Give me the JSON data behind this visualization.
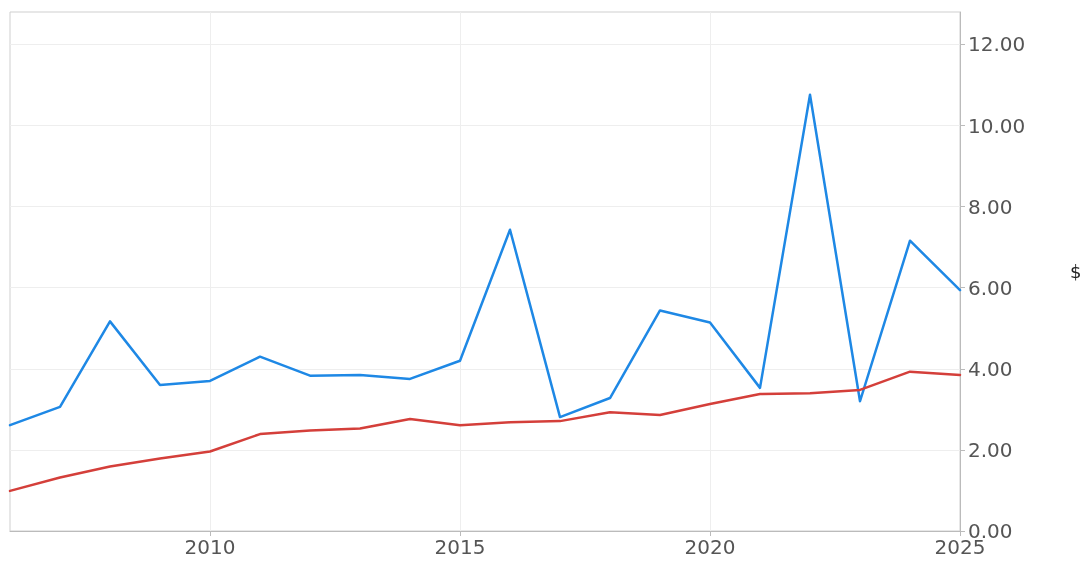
{
  "chart_data": {
    "type": "line",
    "ylabel": "$",
    "x": [
      2006,
      2007,
      2008,
      2009,
      2010,
      2011,
      2012,
      2013,
      2014,
      2015,
      2016,
      2017,
      2018,
      2019,
      2020,
      2021,
      2022,
      2023,
      2024,
      2025
    ],
    "series": [
      {
        "color": "#1e88e5",
        "values": [
          2.61,
          3.06,
          5.17,
          3.6,
          3.7,
          4.3,
          3.83,
          3.85,
          3.75,
          4.2,
          7.43,
          2.81,
          3.28,
          5.44,
          5.14,
          3.53,
          10.76,
          3.2,
          7.16,
          5.94
        ]
      },
      {
        "color": "#d43f3a",
        "values": [
          0.99,
          1.32,
          1.59,
          1.79,
          1.96,
          2.39,
          2.48,
          2.53,
          2.76,
          2.61,
          2.68,
          2.71,
          2.93,
          2.86,
          3.13,
          3.38,
          3.4,
          3.48,
          3.93,
          3.85
        ]
      }
    ],
    "xlim": [
      2006,
      2025
    ],
    "xticks": [
      2010,
      2015,
      2020,
      2025
    ],
    "ylim": [
      0,
      12.8
    ],
    "yticks": [
      {
        "value": 0,
        "label": "0.00"
      },
      {
        "value": 2,
        "label": "2.00"
      },
      {
        "value": 4,
        "label": "4.00"
      },
      {
        "value": 6,
        "label": "6.00"
      },
      {
        "value": 8,
        "label": "8.00"
      },
      {
        "value": 10,
        "label": "10.00"
      },
      {
        "value": 12,
        "label": "12.00"
      }
    ],
    "grid": true,
    "marker": "none",
    "line_style": "solid"
  }
}
